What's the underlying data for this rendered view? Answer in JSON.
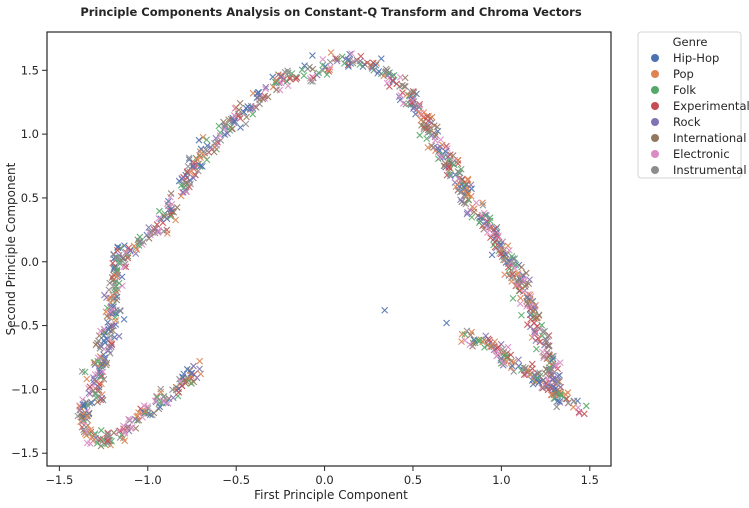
{
  "chart_data": {
    "type": "scatter",
    "title": "Principle Components Analysis on Constant-Q Transform and Chroma Vectors",
    "xlabel": "First Principle Component",
    "ylabel": "Second Principle Component",
    "xlim": [
      -1.57,
      1.62
    ],
    "ylim": [
      -1.6,
      1.8
    ],
    "xticks": [
      -1.5,
      -1.0,
      -0.5,
      0.0,
      0.5,
      1.0,
      1.5
    ],
    "xtick_labels": [
      "−1.5",
      "−1.0",
      "−0.5",
      "0.0",
      "0.5",
      "1.0",
      "1.5"
    ],
    "yticks": [
      -1.5,
      -1.0,
      -0.5,
      0.0,
      0.5,
      1.0,
      1.5
    ],
    "ytick_labels": [
      "−1.5",
      "−1.0",
      "−0.5",
      "0.0",
      "0.5",
      "1.0",
      "1.5"
    ],
    "marker": "x",
    "grid": false,
    "legend": {
      "title": "Genre",
      "placement": "outside-upper-right",
      "entries": [
        {
          "label": "Hip-Hop",
          "color": "#4c72b0"
        },
        {
          "label": "Pop",
          "color": "#dd8452"
        },
        {
          "label": "Folk",
          "color": "#55a868"
        },
        {
          "label": "Experimental",
          "color": "#c44e52"
        },
        {
          "label": "Rock",
          "color": "#8172b3"
        },
        {
          "label": "International",
          "color": "#937860"
        },
        {
          "label": "Electronic",
          "color": "#da8bc3"
        },
        {
          "label": "Instrumental",
          "color": "#8c8c8c"
        }
      ]
    },
    "curve_paths": [
      {
        "description": "main arch",
        "points": [
          [
            -1.28,
            -1.1
          ],
          [
            -1.3,
            -0.95
          ],
          [
            -1.27,
            -0.8
          ],
          [
            -1.22,
            -0.55
          ],
          [
            -1.2,
            -0.3
          ],
          [
            -1.18,
            -0.1
          ],
          [
            -1.15,
            0.05
          ],
          [
            -1.05,
            0.15
          ],
          [
            -0.95,
            0.25
          ],
          [
            -0.88,
            0.4
          ],
          [
            -0.8,
            0.6
          ],
          [
            -0.72,
            0.8
          ],
          [
            -0.62,
            0.95
          ],
          [
            -0.52,
            1.1
          ],
          [
            -0.42,
            1.22
          ],
          [
            -0.33,
            1.35
          ],
          [
            -0.22,
            1.45
          ],
          [
            -0.1,
            1.48
          ],
          [
            0.02,
            1.52
          ],
          [
            0.1,
            1.58
          ],
          [
            0.2,
            1.56
          ],
          [
            0.28,
            1.55
          ],
          [
            0.35,
            1.5
          ],
          [
            0.42,
            1.4
          ],
          [
            0.5,
            1.25
          ],
          [
            0.56,
            1.1
          ],
          [
            0.63,
            0.95
          ],
          [
            0.7,
            0.8
          ],
          [
            0.76,
            0.65
          ],
          [
            0.82,
            0.5
          ],
          [
            0.88,
            0.35
          ],
          [
            0.93,
            0.25
          ],
          [
            0.98,
            0.15
          ],
          [
            1.03,
            0.05
          ],
          [
            1.08,
            -0.1
          ],
          [
            1.13,
            -0.25
          ],
          [
            1.17,
            -0.4
          ],
          [
            1.22,
            -0.55
          ],
          [
            1.25,
            -0.7
          ],
          [
            1.28,
            -0.85
          ],
          [
            1.3,
            -1.0
          ],
          [
            1.35,
            -1.08
          ],
          [
            1.42,
            -1.12
          ],
          [
            1.47,
            -1.15
          ]
        ],
        "spread": 0.025,
        "count": 900
      },
      {
        "description": "lower-left loop",
        "points": [
          [
            -1.35,
            -1.1
          ],
          [
            -1.37,
            -1.25
          ],
          [
            -1.33,
            -1.38
          ],
          [
            -1.25,
            -1.42
          ],
          [
            -1.15,
            -1.35
          ],
          [
            -1.05,
            -1.2
          ],
          [
            -0.95,
            -1.1
          ],
          [
            -0.85,
            -1.0
          ],
          [
            -0.75,
            -0.88
          ],
          [
            -0.72,
            -0.83
          ]
        ],
        "spread": 0.025,
        "count": 170
      },
      {
        "description": "lower-right branch",
        "points": [
          [
            0.8,
            -0.57
          ],
          [
            0.9,
            -0.62
          ],
          [
            1.0,
            -0.72
          ],
          [
            1.08,
            -0.82
          ],
          [
            1.18,
            -0.9
          ],
          [
            1.25,
            -0.98
          ],
          [
            1.32,
            -1.05
          ]
        ],
        "spread": 0.02,
        "count": 110
      }
    ],
    "outliers": [
      {
        "x": 0.34,
        "y": -0.38,
        "genre": "Hip-Hop"
      },
      {
        "x": 0.69,
        "y": -0.48,
        "genre": "Hip-Hop"
      }
    ],
    "axis_color": "#262626"
  }
}
